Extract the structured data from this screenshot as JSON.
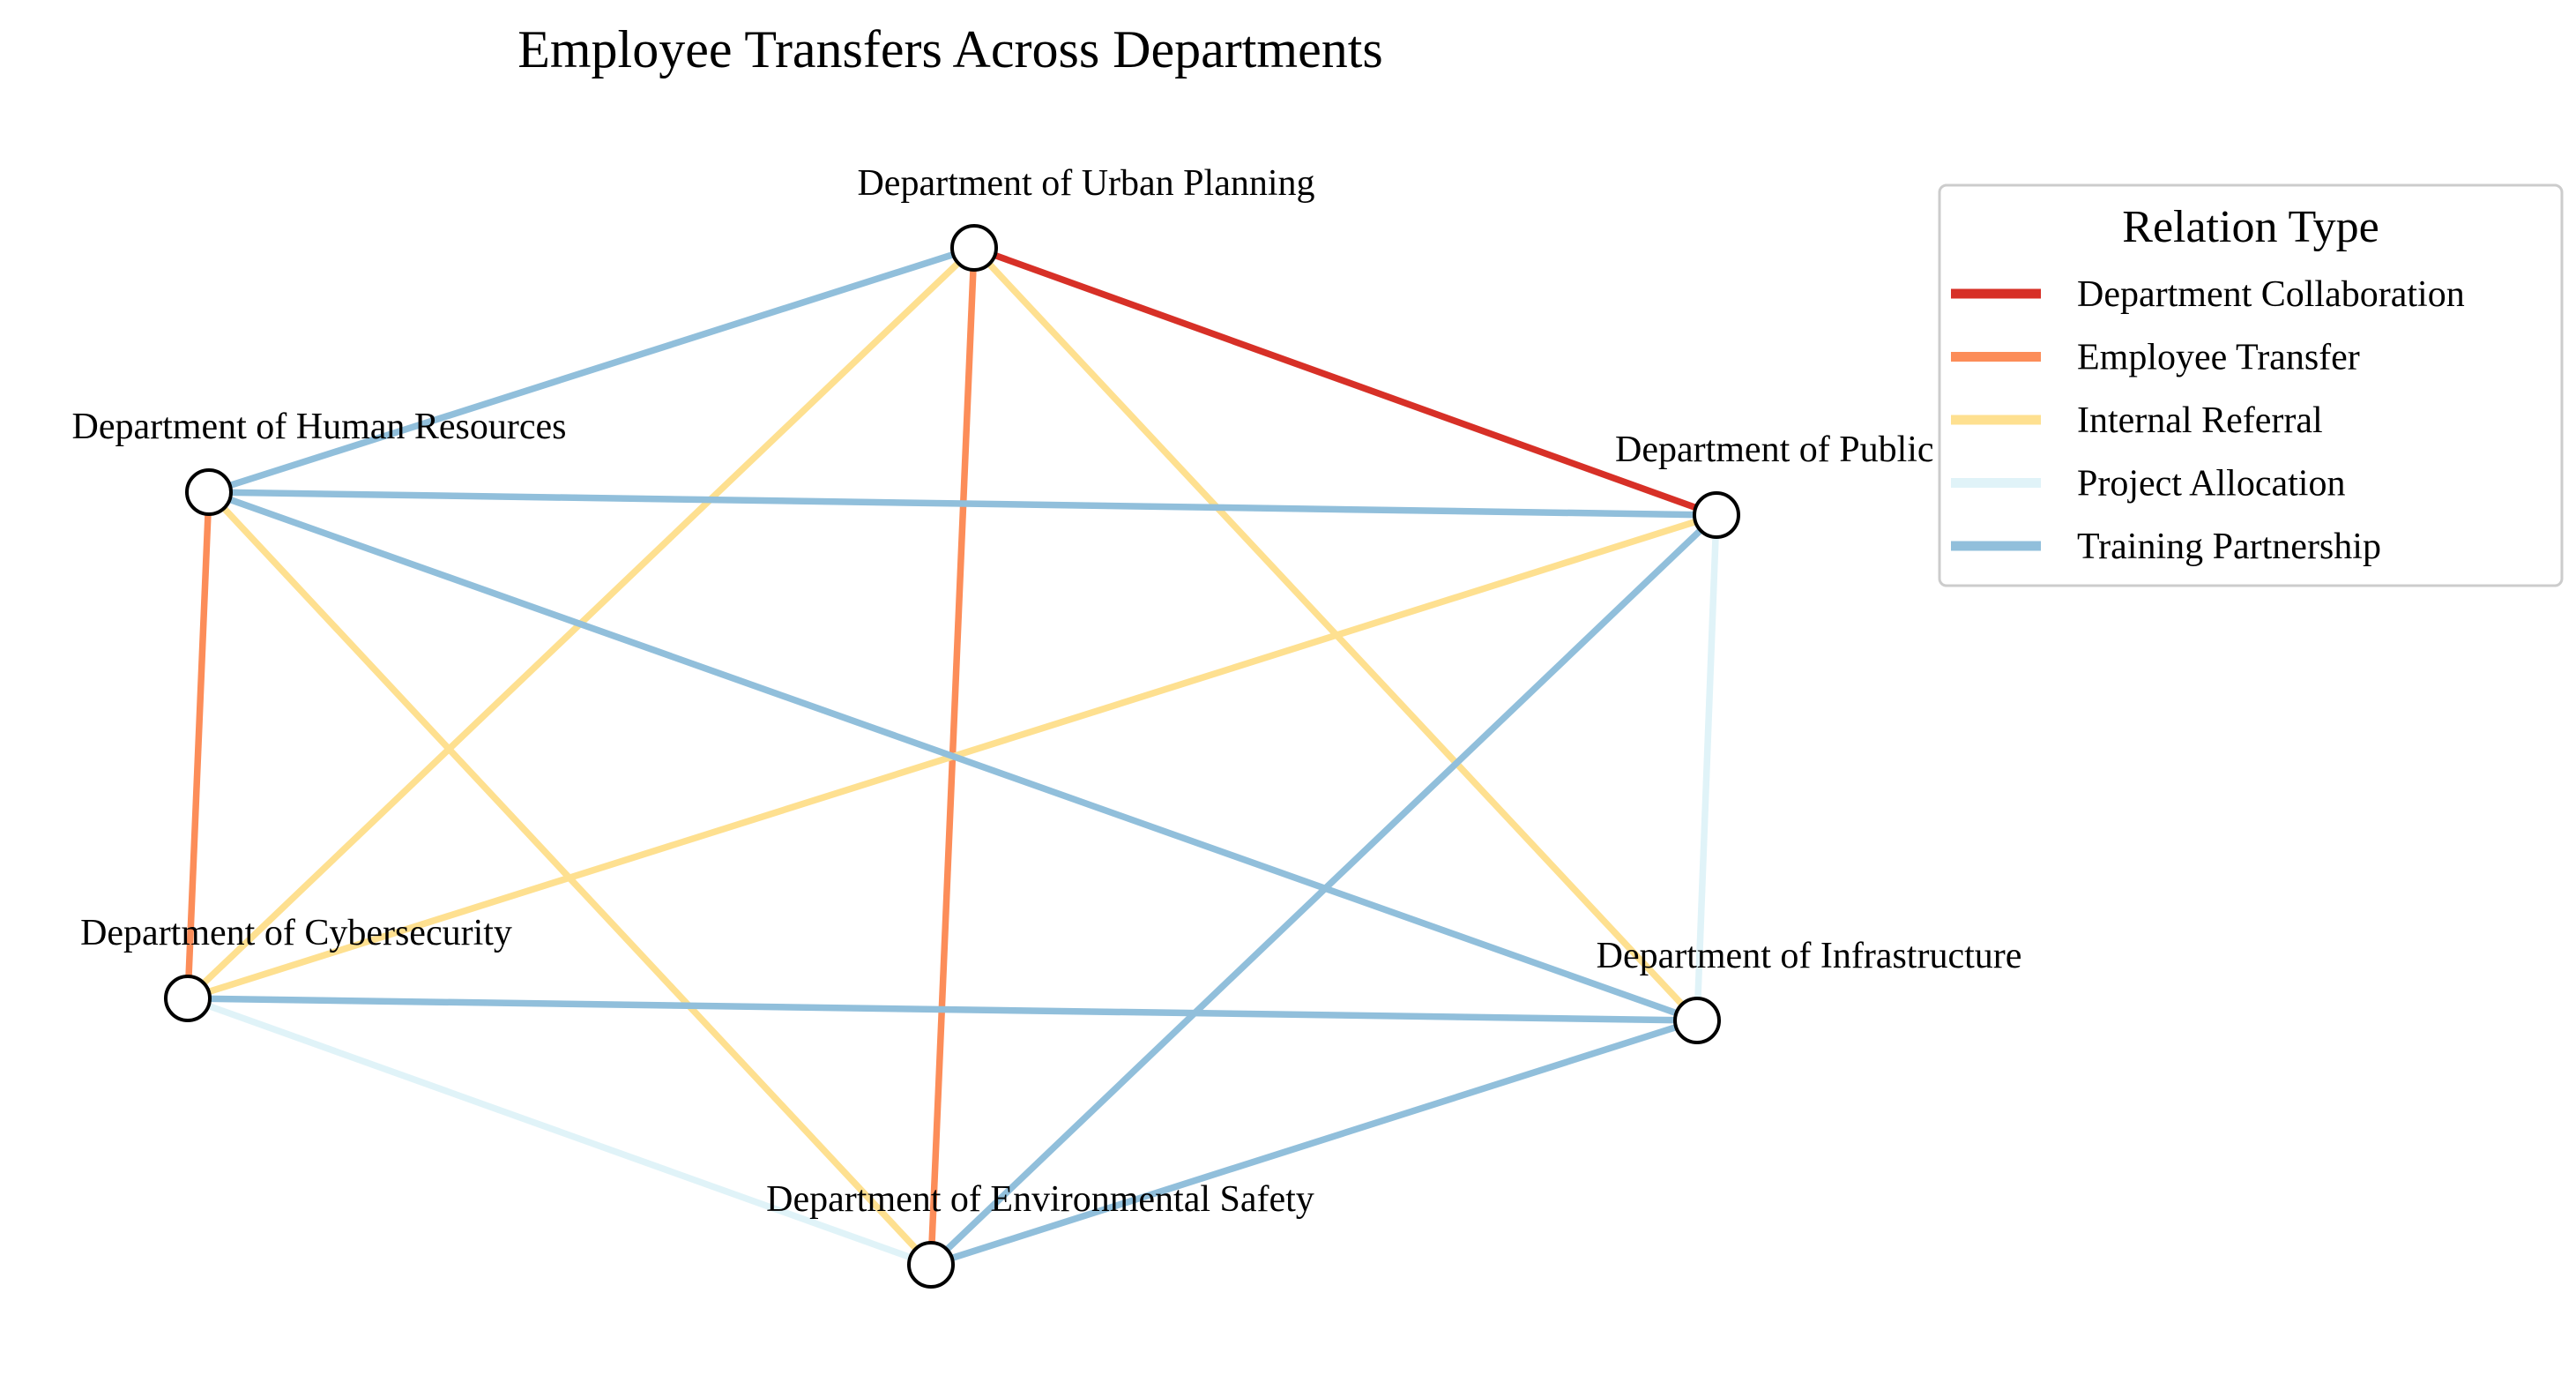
{
  "title": "Employee Transfers Across Departments",
  "legend": {
    "title": "Relation Type",
    "items": [
      {
        "label": "Department Collaboration",
        "color": "#d73027"
      },
      {
        "label": "Employee Transfer",
        "color": "#fc8d59"
      },
      {
        "label": "Internal Referral",
        "color": "#fee090"
      },
      {
        "label": "Project Allocation",
        "color": "#e0f3f8"
      },
      {
        "label": "Training Partnership",
        "color": "#91bfdb"
      }
    ]
  },
  "nodes": [
    {
      "id": "urban",
      "label": "Department of Urban Planning"
    },
    {
      "id": "hr",
      "label": "Department of Human Resources"
    },
    {
      "id": "health",
      "label": "Department of Public Health"
    },
    {
      "id": "cyber",
      "label": "Department of Cybersecurity"
    },
    {
      "id": "infra",
      "label": "Department of Infrastructure"
    },
    {
      "id": "env",
      "label": "Department of Environmental Safety"
    }
  ],
  "edges": [
    {
      "source": "urban",
      "target": "health",
      "relation": "Department Collaboration"
    },
    {
      "source": "urban",
      "target": "env",
      "relation": "Employee Transfer"
    },
    {
      "source": "hr",
      "target": "cyber",
      "relation": "Employee Transfer"
    },
    {
      "source": "urban",
      "target": "cyber",
      "relation": "Internal Referral"
    },
    {
      "source": "urban",
      "target": "infra",
      "relation": "Internal Referral"
    },
    {
      "source": "hr",
      "target": "env",
      "relation": "Internal Referral"
    },
    {
      "source": "cyber",
      "target": "health",
      "relation": "Internal Referral"
    },
    {
      "source": "health",
      "target": "infra",
      "relation": "Project Allocation"
    },
    {
      "source": "cyber",
      "target": "env",
      "relation": "Project Allocation"
    },
    {
      "source": "urban",
      "target": "hr",
      "relation": "Training Partnership"
    },
    {
      "source": "hr",
      "target": "health",
      "relation": "Training Partnership"
    },
    {
      "source": "hr",
      "target": "infra",
      "relation": "Training Partnership"
    },
    {
      "source": "health",
      "target": "env",
      "relation": "Training Partnership"
    },
    {
      "source": "cyber",
      "target": "infra",
      "relation": "Training Partnership"
    },
    {
      "source": "env",
      "target": "infra",
      "relation": "Training Partnership"
    }
  ]
}
